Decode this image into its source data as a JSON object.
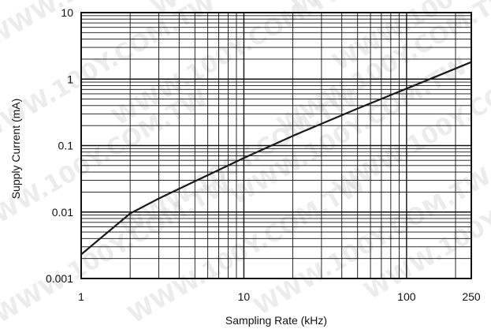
{
  "chart_data": {
    "type": "line",
    "xlabel": "Sampling Rate (kHz)",
    "ylabel": "Supply Current (mA)",
    "xscale": "log",
    "yscale": "log",
    "xlim": [
      1,
      250
    ],
    "ylim": [
      0.001,
      10
    ],
    "grid": true,
    "x_ticks": [
      {
        "value": 1,
        "label": "1"
      },
      {
        "value": 10,
        "label": "10"
      },
      {
        "value": 100,
        "label": "100"
      },
      {
        "value": 250,
        "label": "250"
      }
    ],
    "y_ticks": [
      {
        "value": 0.001,
        "label": "0.001"
      },
      {
        "value": 0.01,
        "label": "0.01"
      },
      {
        "value": 0.1,
        "label": "0.1"
      },
      {
        "value": 1,
        "label": "1"
      },
      {
        "value": 10,
        "label": "10"
      }
    ],
    "series": [
      {
        "color": "#1a1a1a",
        "points": [
          {
            "x": 1,
            "y": 0.0023
          },
          {
            "x": 2,
            "y": 0.0095
          },
          {
            "x": 3,
            "y": 0.016
          },
          {
            "x": 5,
            "y": 0.029
          },
          {
            "x": 10,
            "y": 0.065
          },
          {
            "x": 20,
            "y": 0.14
          },
          {
            "x": 50,
            "y": 0.36
          },
          {
            "x": 100,
            "y": 0.72
          },
          {
            "x": 250,
            "y": 1.8
          }
        ]
      }
    ],
    "watermark": "WWW.100Y.COM.TW"
  }
}
